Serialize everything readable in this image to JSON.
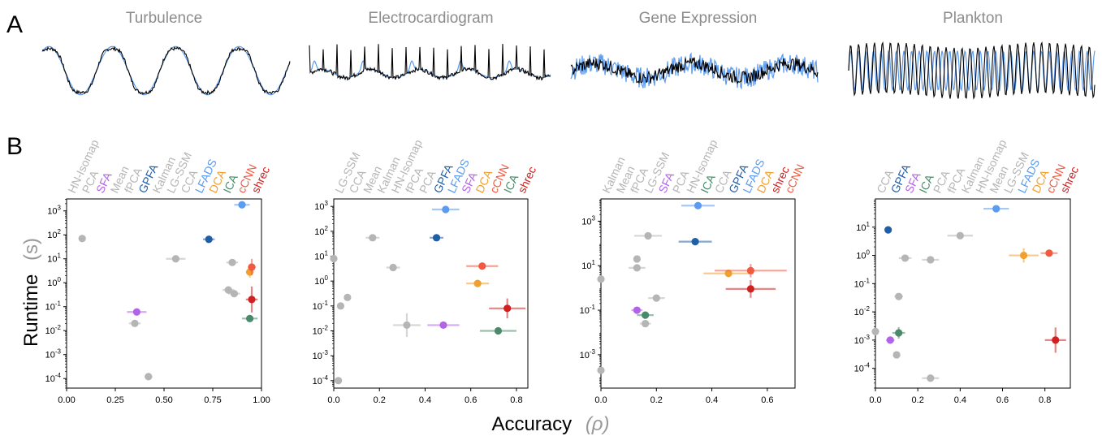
{
  "panel_labels": {
    "a": "A",
    "b": "B"
  },
  "axis_titles": {
    "y_main": "Runtime",
    "y_unit": "(s)",
    "x_main": "Accuracy",
    "x_unit": "(ρ)"
  },
  "colors": {
    "target": "#000000",
    "reconstruction": "#5b9bf0"
  },
  "method_colors": {
    "HN-Isomap": "#b5b5b5",
    "PCA": "#b5b5b5",
    "SFA": "#b264e8",
    "Mean": "#b5b5b5",
    "fPCA": "#b5b5b5",
    "GPFA": "#1f5fa8",
    "Kalman": "#b5b5b5",
    "LG-SSM": "#b5b5b5",
    "CCA": "#b5b5b5",
    "LFADS": "#5b9bf0",
    "DCA": "#f0a030",
    "ICA": "#4a8a6a",
    "cCNN": "#f05a40",
    "shrec": "#d02020"
  },
  "chart_data": [
    {
      "type": "scatter",
      "title": "Turbulence",
      "xlabel": "Accuracy (ρ)",
      "ylabel": "Runtime (s)",
      "xlim": [
        0.0,
        1.0
      ],
      "ylim_log10": [
        -4.4,
        3.5
      ],
      "yscale": "log",
      "xticks": [
        0,
        0.25,
        0.5,
        0.75,
        1.0
      ],
      "xtick_labels": [
        "0.00",
        "0.25",
        "0.50",
        "0.75",
        "1.00"
      ],
      "yticks_exp": [
        -4,
        -3,
        -2,
        -1,
        0,
        1,
        2,
        3
      ],
      "legend_order": [
        "HN-Isomap",
        "PCA",
        "SFA",
        "Mean",
        "fPCA",
        "GPFA",
        "Kalman",
        "LG-SSM",
        "CCA",
        "LFADS",
        "DCA",
        "ICA",
        "cCNN",
        "shrec"
      ],
      "points": [
        {
          "method": "HN-Isomap",
          "x": 0.08,
          "y": 70,
          "xerr": 0.0,
          "yerr_fac": 1.0
        },
        {
          "method": "PCA",
          "x": 0.86,
          "y": 0.35,
          "xerr": 0.03,
          "yerr_fac": 1.0
        },
        {
          "method": "SFA",
          "x": 0.36,
          "y": 0.06,
          "xerr": 0.05,
          "yerr_fac": 1.0
        },
        {
          "method": "Mean",
          "x": 0.42,
          "y": 0.00012,
          "xerr": 0.02,
          "yerr_fac": 1.0
        },
        {
          "method": "fPCA",
          "x": 0.56,
          "y": 10,
          "xerr": 0.05,
          "yerr_fac": 1.0
        },
        {
          "method": "GPFA",
          "x": 0.73,
          "y": 65,
          "xerr": 0.03,
          "yerr_fac": 1.0
        },
        {
          "method": "Kalman",
          "x": 0.83,
          "y": 0.5,
          "xerr": 0.03,
          "yerr_fac": 1.0
        },
        {
          "method": "LG-SSM",
          "x": 0.35,
          "y": 0.02,
          "xerr": 0.03,
          "yerr_fac": 1.0
        },
        {
          "method": "CCA",
          "x": 0.85,
          "y": 7,
          "xerr": 0.03,
          "yerr_fac": 1.0
        },
        {
          "method": "LFADS",
          "x": 0.9,
          "y": 1800,
          "xerr": 0.04,
          "yerr_fac": 1.0
        },
        {
          "method": "DCA",
          "x": 0.94,
          "y": 2.8,
          "xerr": 0.02,
          "yerr_fac": 1.7
        },
        {
          "method": "ICA",
          "x": 0.94,
          "y": 0.032,
          "xerr": 0.04,
          "yerr_fac": 1.0
        },
        {
          "method": "cCNN",
          "x": 0.95,
          "y": 4.5,
          "xerr": 0.02,
          "yerr_fac": 2.2
        },
        {
          "method": "shrec",
          "x": 0.95,
          "y": 0.2,
          "xerr": 0.03,
          "yerr_fac": 3.5
        }
      ]
    },
    {
      "type": "scatter",
      "title": "Electrocardiogram",
      "xlabel": "Accuracy (ρ)",
      "ylabel": "Runtime (s)",
      "xlim": [
        0.0,
        0.85
      ],
      "ylim_log10": [
        -4.3,
        3.3
      ],
      "yscale": "log",
      "xticks": [
        0,
        0.2,
        0.4,
        0.6,
        0.8
      ],
      "xtick_labels": [
        "0.0",
        "0.2",
        "0.4",
        "0.6",
        "0.8"
      ],
      "yticks_exp": [
        -4,
        -3,
        -2,
        -1,
        0,
        1,
        2,
        3
      ],
      "legend_order": [
        "LG-SSM",
        "CCA",
        "Mean",
        "Kalman",
        "HN-Isomap",
        "fPCA",
        "PCA",
        "GPFA",
        "LFADS",
        "SFA",
        "DCA",
        "cCNN",
        "ICA",
        "shrec"
      ],
      "points": [
        {
          "method": "LG-SSM",
          "x": 0.0,
          "y": 8,
          "xerr": 0.0,
          "yerr_fac": 1.0
        },
        {
          "method": "CCA",
          "x": 0.03,
          "y": 0.1,
          "xerr": 0.0,
          "yerr_fac": 1.0
        },
        {
          "method": "Mean",
          "x": 0.02,
          "y": 0.0001,
          "xerr": 0.0,
          "yerr_fac": 1.0
        },
        {
          "method": "Kalman",
          "x": 0.17,
          "y": 55,
          "xerr": 0.03,
          "yerr_fac": 1.0
        },
        {
          "method": "HN-Isomap",
          "x": 0.26,
          "y": 3.5,
          "xerr": 0.03,
          "yerr_fac": 1.0
        },
        {
          "method": "fPCA",
          "x": 0.06,
          "y": 0.22,
          "xerr": 0.01,
          "yerr_fac": 1.0
        },
        {
          "method": "PCA",
          "x": 0.32,
          "y": 0.017,
          "xerr": 0.06,
          "yerr_fac": 3.0
        },
        {
          "method": "GPFA",
          "x": 0.45,
          "y": 55,
          "xerr": 0.03,
          "yerr_fac": 1.0
        },
        {
          "method": "LFADS",
          "x": 0.49,
          "y": 750,
          "xerr": 0.06,
          "yerr_fac": 1.0
        },
        {
          "method": "SFA",
          "x": 0.48,
          "y": 0.017,
          "xerr": 0.07,
          "yerr_fac": 1.0
        },
        {
          "method": "DCA",
          "x": 0.63,
          "y": 0.8,
          "xerr": 0.05,
          "yerr_fac": 1.0
        },
        {
          "method": "cCNN",
          "x": 0.65,
          "y": 4,
          "xerr": 0.07,
          "yerr_fac": 1.0
        },
        {
          "method": "ICA",
          "x": 0.72,
          "y": 0.01,
          "xerr": 0.08,
          "yerr_fac": 1.0
        },
        {
          "method": "shrec",
          "x": 0.76,
          "y": 0.08,
          "xerr": 0.08,
          "yerr_fac": 2.5
        }
      ]
    },
    {
      "type": "scatter",
      "title": "Gene Expression",
      "xlabel": "Accuracy (ρ)",
      "ylabel": "Runtime (s)",
      "xlim": [
        0.0,
        0.7
      ],
      "ylim_log10": [
        -4.5,
        4.0
      ],
      "yscale": "log",
      "xticks": [
        0,
        0.2,
        0.4,
        0.6
      ],
      "xtick_labels": [
        "0.0",
        "0.2",
        "0.4",
        "0.6"
      ],
      "yticks_exp": [
        -3,
        -1,
        1,
        3
      ],
      "legend_order": [
        "Kalman",
        "Mean",
        "fPCA",
        "LG-SSM",
        "SFA",
        "PCA",
        "HN-Isomap",
        "ICA",
        "CCA",
        "GPFA",
        "LFADS",
        "DCA",
        "shrec",
        "cCNN"
      ],
      "points": [
        {
          "method": "Kalman",
          "x": 0.0,
          "y": 2.5,
          "xerr": 0.0,
          "yerr_fac": 1.0
        },
        {
          "method": "Mean",
          "x": 0.0,
          "y": 0.0002,
          "xerr": 0.0,
          "yerr_fac": 1.0
        },
        {
          "method": "fPCA",
          "x": 0.2,
          "y": 0.35,
          "xerr": 0.03,
          "yerr_fac": 1.0
        },
        {
          "method": "LG-SSM",
          "x": 0.13,
          "y": 8,
          "xerr": 0.03,
          "yerr_fac": 1.0
        },
        {
          "method": "SFA",
          "x": 0.13,
          "y": 0.1,
          "xerr": 0.02,
          "yerr_fac": 1.0
        },
        {
          "method": "PCA",
          "x": 0.13,
          "y": 20,
          "xerr": 0.01,
          "yerr_fac": 1.0
        },
        {
          "method": "HN-Isomap",
          "x": 0.17,
          "y": 220,
          "xerr": 0.05,
          "yerr_fac": 1.0
        },
        {
          "method": "ICA",
          "x": 0.16,
          "y": 0.06,
          "xerr": 0.03,
          "yerr_fac": 1.0
        },
        {
          "method": "CCA",
          "x": 0.16,
          "y": 0.025,
          "xerr": 0.02,
          "yerr_fac": 1.0
        },
        {
          "method": "GPFA",
          "x": 0.34,
          "y": 120,
          "xerr": 0.06,
          "yerr_fac": 1.0
        },
        {
          "method": "LFADS",
          "x": 0.35,
          "y": 5000,
          "xerr": 0.06,
          "yerr_fac": 1.0
        },
        {
          "method": "DCA",
          "x": 0.46,
          "y": 4.5,
          "xerr": 0.09,
          "yerr_fac": 1.0
        },
        {
          "method": "shrec",
          "x": 0.54,
          "y": 0.9,
          "xerr": 0.09,
          "yerr_fac": 2.5
        },
        {
          "method": "cCNN",
          "x": 0.54,
          "y": 6,
          "xerr": 0.13,
          "yerr_fac": 2.0
        }
      ]
    },
    {
      "type": "scatter",
      "title": "Plankton",
      "xlabel": "Accuracy (ρ)",
      "ylabel": "Runtime (s)",
      "xlim": [
        0.0,
        0.92
      ],
      "ylim_log10": [
        -4.7,
        2.0
      ],
      "yscale": "log",
      "xticks": [
        0,
        0.2,
        0.4,
        0.6,
        0.8
      ],
      "xtick_labels": [
        "0.0",
        "0.2",
        "0.4",
        "0.6",
        "0.8"
      ],
      "yticks_exp": [
        -4,
        -3,
        -2,
        -1,
        0,
        1
      ],
      "legend_order": [
        "CCA",
        "GPFA",
        "SFA",
        "ICA",
        "PCA",
        "fPCA",
        "Kalman",
        "HN-Isomap",
        "Mean",
        "LG-SSM",
        "LFADS",
        "DCA",
        "cCNN",
        "shrec"
      ],
      "points": [
        {
          "method": "CCA",
          "x": 0.0,
          "y": 0.002,
          "xerr": 0.0,
          "yerr_fac": 1.0
        },
        {
          "method": "GPFA",
          "x": 0.06,
          "y": 8,
          "xerr": 0.0,
          "yerr_fac": 1.0
        },
        {
          "method": "SFA",
          "x": 0.07,
          "y": 0.001,
          "xerr": 0.02,
          "yerr_fac": 1.0
        },
        {
          "method": "ICA",
          "x": 0.11,
          "y": 0.0018,
          "xerr": 0.03,
          "yerr_fac": 1.6
        },
        {
          "method": "PCA",
          "x": 0.14,
          "y": 0.8,
          "xerr": 0.03,
          "yerr_fac": 1.0
        },
        {
          "method": "fPCA",
          "x": 0.11,
          "y": 0.035,
          "xerr": 0.02,
          "yerr_fac": 1.0
        },
        {
          "method": "Kalman",
          "x": 0.26,
          "y": 0.7,
          "xerr": 0.04,
          "yerr_fac": 1.0
        },
        {
          "method": "HN-Isomap",
          "x": 0.4,
          "y": 5,
          "xerr": 0.06,
          "yerr_fac": 1.0
        },
        {
          "method": "Mean",
          "x": 0.1,
          "y": 0.0003,
          "xerr": 0.01,
          "yerr_fac": 1.0
        },
        {
          "method": "LG-SSM",
          "x": 0.26,
          "y": 4.5e-05,
          "xerr": 0.04,
          "yerr_fac": 1.0
        },
        {
          "method": "LFADS",
          "x": 0.57,
          "y": 45,
          "xerr": 0.06,
          "yerr_fac": 1.0
        },
        {
          "method": "DCA",
          "x": 0.7,
          "y": 1.0,
          "xerr": 0.07,
          "yerr_fac": 1.8
        },
        {
          "method": "cCNN",
          "x": 0.82,
          "y": 1.2,
          "xerr": 0.04,
          "yerr_fac": 1.0
        },
        {
          "method": "shrec",
          "x": 0.85,
          "y": 0.001,
          "xerr": 0.05,
          "yerr_fac": 2.8
        }
      ]
    }
  ]
}
